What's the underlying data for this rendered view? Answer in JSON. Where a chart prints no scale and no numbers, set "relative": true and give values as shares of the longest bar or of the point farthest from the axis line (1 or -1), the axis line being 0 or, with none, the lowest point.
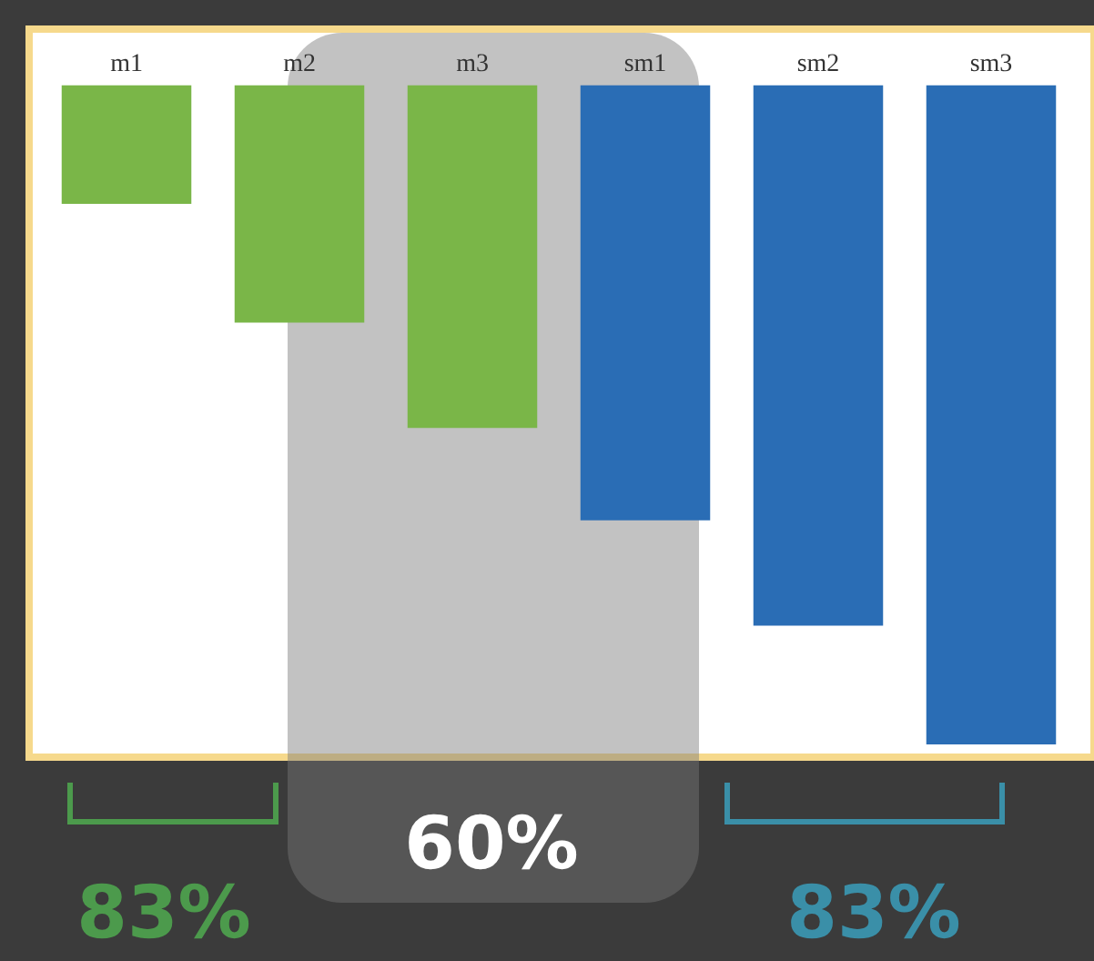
{
  "chart_data": {
    "type": "bar",
    "relative": true,
    "categories": [
      "m1",
      "m2",
      "m3",
      "sm1",
      "sm2",
      "sm3"
    ],
    "series": [
      {
        "color": "#7ab648",
        "values": [
          -0.18,
          -0.36,
          -0.52,
          null,
          null,
          null
        ]
      },
      {
        "color": "#2a6db5",
        "values": [
          null,
          null,
          null,
          -0.66,
          -0.82,
          -1
        ]
      }
    ],
    "annotations": [
      "83%",
      "60%",
      "83%"
    ]
  }
}
